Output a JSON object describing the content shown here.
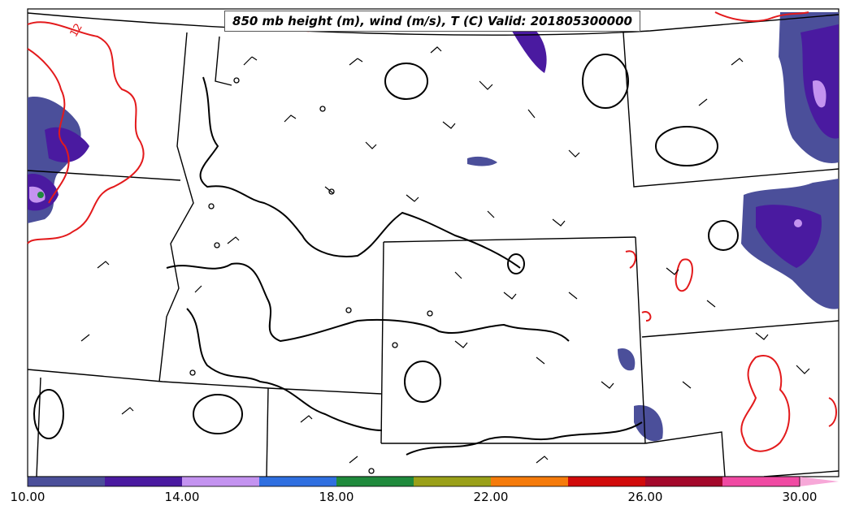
{
  "title": "850 mb height (m), wind (m/s), T (C) Valid: 201805300000",
  "isotherm_label": "12",
  "colorbar": {
    "ticks": [
      "10.00",
      "14.00",
      "18.00",
      "22.00",
      "26.00",
      "30.00"
    ],
    "colors": [
      "#4b4f9a",
      "#4a1aa0",
      "#c493f0",
      "#2f6fe0",
      "#1f8a3c",
      "#9aa018",
      "#f57b0b",
      "#d10a0a",
      "#a3082a",
      "#f04aa3",
      "#f7a8d8"
    ]
  },
  "colors": {
    "state_border": "#000000",
    "height_contour": "#000000",
    "temperature_contour": "#e31a1c"
  }
}
